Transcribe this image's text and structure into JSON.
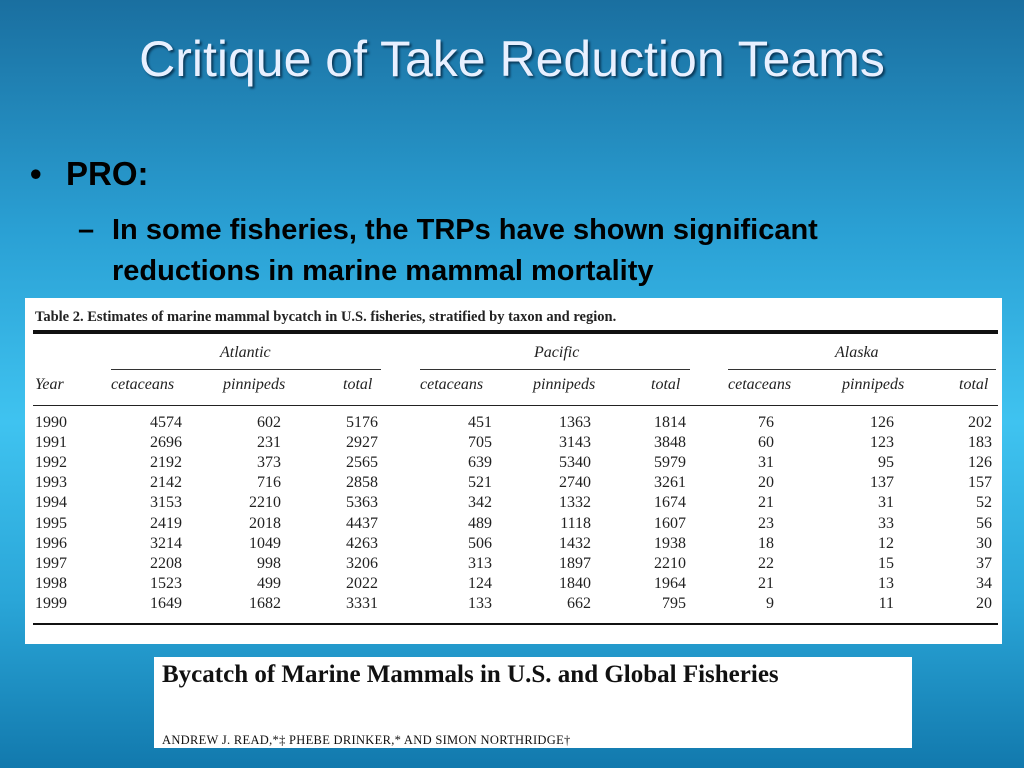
{
  "slide": {
    "title": "Critique of Take Reduction Teams",
    "bullet_marker": "•",
    "bullet": "PRO:",
    "sub_marker": "–",
    "sub_bullet": "In some fisheries, the TRPs have shown significant reductions in marine mammal mortality"
  },
  "table": {
    "caption": "Table 2.  Estimates of marine mammal bycatch in U.S. fisheries, stratified by taxon and region.",
    "regions": [
      "Atlantic",
      "Pacific",
      "Alaska"
    ],
    "year_header": "Year",
    "sub_headers": [
      "cetaceans",
      "pinnipeds",
      "total",
      "cetaceans",
      "pinnipeds",
      "total",
      "cetaceans",
      "pinnipeds",
      "total"
    ],
    "rows": [
      [
        "1990",
        "4574",
        "602",
        "5176",
        "451",
        "1363",
        "1814",
        "76",
        "126",
        "202"
      ],
      [
        "1991",
        "2696",
        "231",
        "2927",
        "705",
        "3143",
        "3848",
        "60",
        "123",
        "183"
      ],
      [
        "1992",
        "2192",
        "373",
        "2565",
        "639",
        "5340",
        "5979",
        "31",
        "95",
        "126"
      ],
      [
        "1993",
        "2142",
        "716",
        "2858",
        "521",
        "2740",
        "3261",
        "20",
        "137",
        "157"
      ],
      [
        "1994",
        "3153",
        "2210",
        "5363",
        "342",
        "1332",
        "1674",
        "21",
        "31",
        "52"
      ],
      [
        "1995",
        "2419",
        "2018",
        "4437",
        "489",
        "1118",
        "1607",
        "23",
        "33",
        "56"
      ],
      [
        "1996",
        "3214",
        "1049",
        "4263",
        "506",
        "1432",
        "1938",
        "18",
        "12",
        "30"
      ],
      [
        "1997",
        "2208",
        "998",
        "3206",
        "313",
        "1897",
        "2210",
        "22",
        "15",
        "37"
      ],
      [
        "1998",
        "1523",
        "499",
        "2022",
        "124",
        "1840",
        "1964",
        "21",
        "13",
        "34"
      ],
      [
        "1999",
        "1649",
        "1682",
        "3331",
        "133",
        "662",
        "795",
        "9",
        "11",
        "20"
      ]
    ]
  },
  "paper": {
    "title": "Bycatch of Marine Mammals in U.S. and Global Fisheries",
    "authors": "ANDREW J. READ,*‡ PHEBE DRINKER,* AND SIMON NORTHRIDGE†"
  }
}
